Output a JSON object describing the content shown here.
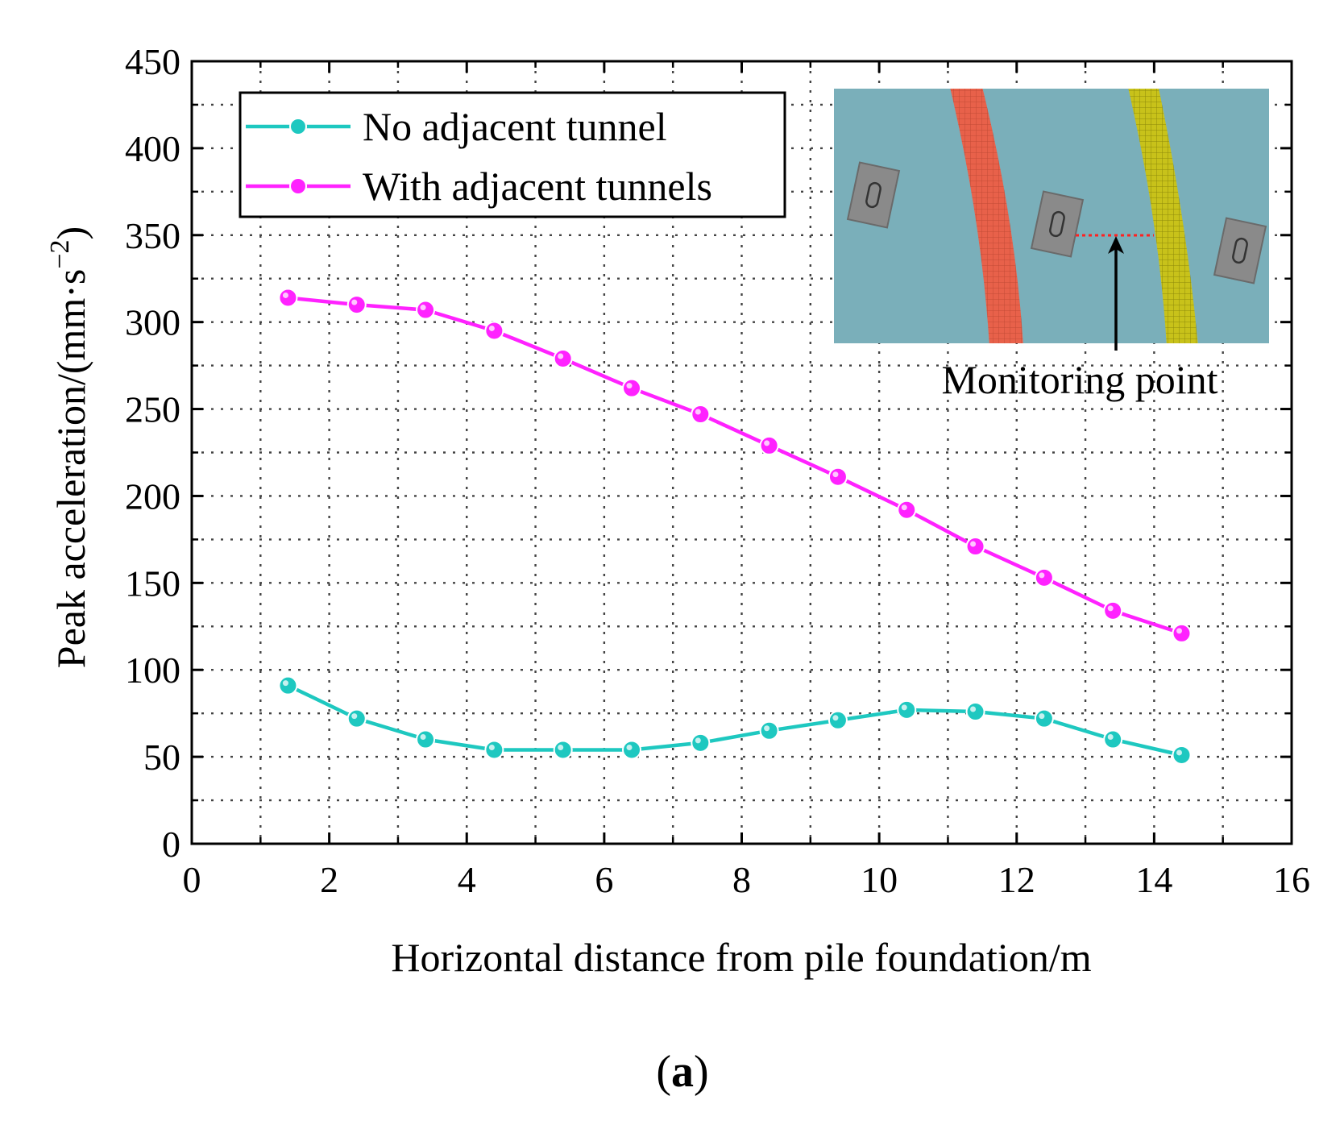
{
  "chart_data": {
    "type": "line",
    "xlabel": "Horizontal distance from pile foundation/m",
    "ylabel": "Peak acceleration/(mm·s",
    "ylabel_sup": "−2",
    "ylabel_tail": ")",
    "xlim": [
      0,
      16
    ],
    "ylim": [
      0,
      450
    ],
    "xticks": [
      0,
      2,
      4,
      6,
      8,
      10,
      12,
      14,
      16
    ],
    "yticks": [
      0,
      50,
      100,
      150,
      200,
      250,
      300,
      350,
      400,
      450
    ],
    "grid": true,
    "legend_position": "top-left",
    "x": [
      1.4,
      2.4,
      3.4,
      4.4,
      5.4,
      6.4,
      7.4,
      8.4,
      9.4,
      10.4,
      11.4,
      12.4,
      13.4,
      14.4
    ],
    "series": [
      {
        "name": "No adjacent tunnel",
        "color": "#1ec8c0",
        "values": [
          91,
          72,
          60,
          54,
          54,
          54,
          58,
          65,
          71,
          77,
          76,
          72,
          60,
          51
        ]
      },
      {
        "name": "With adjacent tunnels",
        "color": "#ff22ff",
        "values": [
          314,
          310,
          307,
          295,
          279,
          262,
          247,
          229,
          211,
          192,
          171,
          153,
          134,
          121
        ]
      }
    ]
  },
  "inset": {
    "annotation": "Monitoring point",
    "background_color": "#7aafba",
    "tunnel_left_color": "#e8614a",
    "tunnel_right_color": "#c8c21a",
    "pile_color": "#8a8a8a"
  },
  "caption": {
    "open": "(",
    "letter": "a",
    "close": ")"
  }
}
